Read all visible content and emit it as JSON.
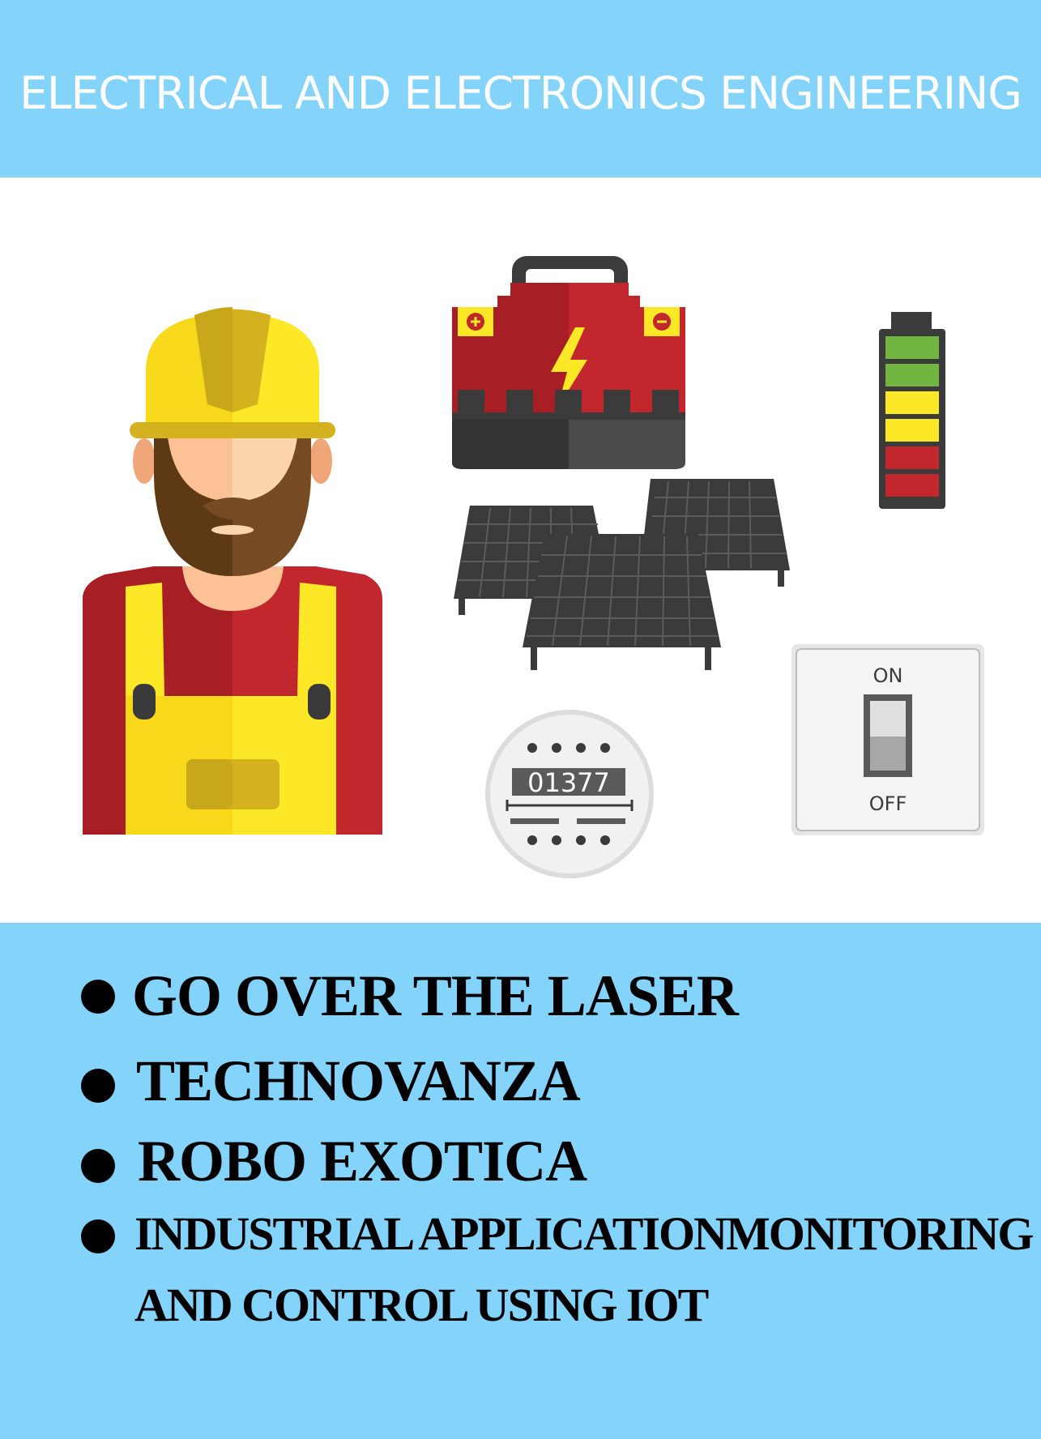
{
  "header": {
    "title": "ELECTRICAL AND ELECTRONICS ENGINEERING"
  },
  "illustration": {
    "icons": [
      "engineer-icon",
      "car-battery-icon",
      "solar-panels-icon",
      "battery-level-icon",
      "electric-meter-icon",
      "light-switch-icon"
    ],
    "meter_reading": "01377",
    "switch_on_label": "ON",
    "switch_off_label": "OFF"
  },
  "events": [
    {
      "label": "GO OVER THE LASER"
    },
    {
      "label": "TECHNOVANZA"
    },
    {
      "label": "ROBO EXOTICA"
    },
    {
      "label": "INDUSTRIAL APPLICATIONMONITORING AND CONTROL USING IOT"
    }
  ],
  "colors": {
    "banner_bg": "#84d3fb",
    "helmet_yellow": "#fce827",
    "shirt_red": "#c1272d",
    "dark_gray": "#3b3b3b",
    "battery_green": "#72b541"
  }
}
